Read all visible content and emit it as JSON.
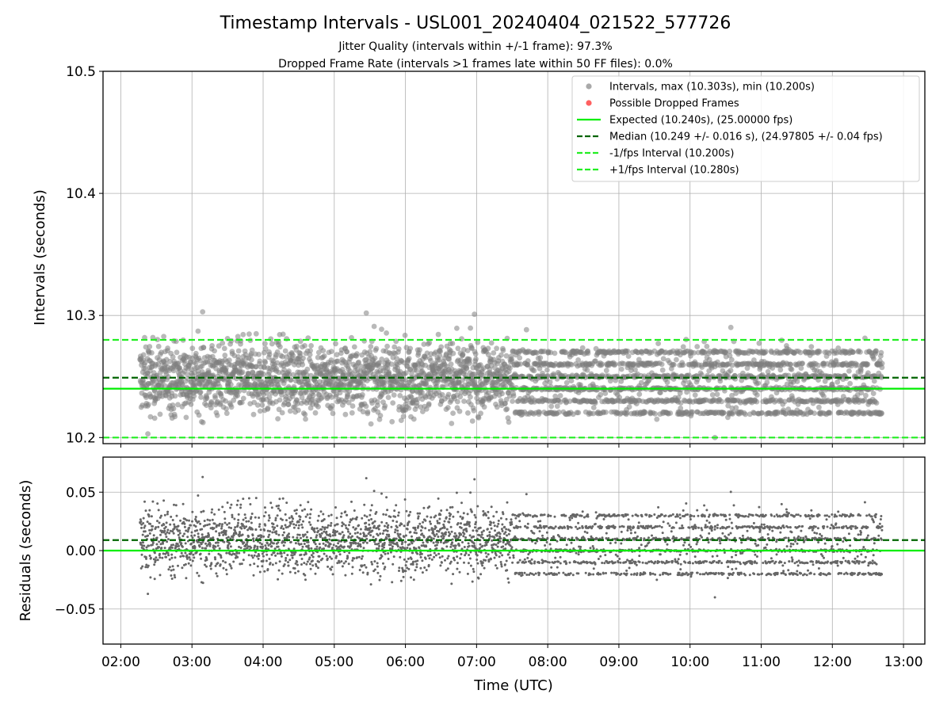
{
  "chart_data": {
    "type": "scatter",
    "title": "Timestamp Intervals - USL001_20240404_021522_577726",
    "subtitle_1": "Jitter Quality (intervals within +/-1 frame): 97.3%",
    "subtitle_2": "Dropped Frame Rate (intervals >1 frames late within 50 FF files): 0.0%",
    "xlabel": "Time (UTC)",
    "x_ticks": [
      "02:00",
      "03:00",
      "04:00",
      "05:00",
      "06:00",
      "07:00",
      "08:00",
      "09:00",
      "10:00",
      "11:00",
      "12:00",
      "13:00"
    ],
    "x_range_hours": [
      1.75,
      13.3
    ],
    "data_time_range_hours": [
      2.27,
      12.7
    ],
    "grid": true,
    "top_panel": {
      "ylabel": "Intervals (seconds)",
      "ylim": [
        10.195,
        10.5
      ],
      "y_ticks": [
        "10.2",
        "10.3",
        "10.4",
        "10.5"
      ],
      "y_tick_values": [
        10.2,
        10.3,
        10.4,
        10.5
      ],
      "legend_position": "upper right",
      "series": [
        {
          "name": "Intervals, max (10.303s), min (10.200s)",
          "kind": "scatter",
          "color": "#808080",
          "max": 10.303,
          "min": 10.2,
          "median": 10.249,
          "std": 0.016,
          "count": 3700
        },
        {
          "name": "Possible Dropped Frames",
          "kind": "scatter",
          "color": "#ff0000",
          "count": 0
        },
        {
          "name": "Expected (10.240s), (25.00000 fps)",
          "kind": "hline",
          "style": "solid",
          "color": "#00ee00",
          "y": 10.24
        },
        {
          "name": "Median (10.249 +/- 0.016 s), (24.97805 +/- 0.04 fps)",
          "kind": "hline",
          "style": "dashed",
          "color": "#006400",
          "y": 10.249
        },
        {
          "name": "-1/fps Interval (10.200s)",
          "kind": "hline",
          "style": "dashed",
          "color": "#22ee22",
          "y": 10.2
        },
        {
          "name": "+1/fps Interval (10.280s)",
          "kind": "hline",
          "style": "dashed",
          "color": "#22ee22",
          "y": 10.28
        }
      ]
    },
    "bottom_panel": {
      "ylabel": "Residuals (seconds)",
      "ylim": [
        -0.08,
        0.08
      ],
      "y_ticks": [
        "0.05",
        "0.00",
        "−0.05"
      ],
      "y_tick_values": [
        0.05,
        0.0,
        -0.05
      ],
      "series": [
        {
          "kind": "scatter",
          "color": "#666666",
          "note_residual_of": "intervals minus expected"
        },
        {
          "kind": "hline",
          "style": "solid",
          "color": "#00ee00",
          "y": 0.0
        },
        {
          "kind": "hline",
          "style": "dashed",
          "color": "#006400",
          "y": 0.009
        }
      ]
    }
  }
}
